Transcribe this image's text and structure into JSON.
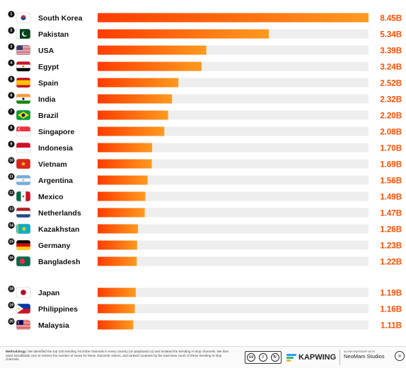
{
  "chart_data": {
    "type": "bar",
    "orientation": "horizontal",
    "categories": [
      "South Korea",
      "Pakistan",
      "USA",
      "Egypt",
      "Spain",
      "India",
      "Brazil",
      "Singapore",
      "Indonesia",
      "Vietnam",
      "Argentina",
      "Mexico",
      "Netherlands",
      "Kazakhstan",
      "Germany",
      "Bangladesh",
      "Japan",
      "Philippines",
      "Malaysia"
    ],
    "ranks": [
      "1",
      "2",
      "3",
      "4",
      "5",
      "6",
      "7",
      "8",
      "9",
      "10",
      "11",
      "12",
      "13",
      "14",
      "15",
      "16",
      "18",
      "19",
      "20"
    ],
    "values": [
      8.45,
      5.34,
      3.39,
      3.24,
      2.52,
      2.32,
      2.2,
      2.08,
      1.7,
      1.69,
      1.56,
      1.49,
      1.47,
      1.26,
      1.23,
      1.22,
      1.19,
      1.16,
      1.11
    ],
    "value_labels": [
      "8.45B",
      "5.34B",
      "3.39B",
      "3.24B",
      "2.52B",
      "2.32B",
      "2.20B",
      "2.08B",
      "1.70B",
      "1.69B",
      "1.56B",
      "1.49B",
      "1.47B",
      "1.26B",
      "1.23B",
      "1.22B",
      "1.19B",
      "1.16B",
      "1.11B"
    ],
    "flag_icons": [
      "south-korea-flag-icon",
      "pakistan-flag-icon",
      "usa-flag-icon",
      "egypt-flag-icon",
      "spain-flag-icon",
      "india-flag-icon",
      "brazil-flag-icon",
      "singapore-flag-icon",
      "indonesia-flag-icon",
      "vietnam-flag-icon",
      "argentina-flag-icon",
      "mexico-flag-icon",
      "netherlands-flag-icon",
      "kazakhstan-flag-icon",
      "germany-flag-icon",
      "bangladesh-flag-icon",
      "japan-flag-icon",
      "philippines-flag-icon",
      "malaysia-flag-icon"
    ],
    "xlim": [
      0,
      8.45
    ],
    "grid": false,
    "colors": {
      "bar_start": "#ff3d00",
      "bar_end": "#ff9a1f",
      "track": "#eeeeee",
      "label": "#111111"
    }
  },
  "footer": {
    "methodology_label": "Methodology:",
    "methodology_text": "We identified the top 100 trending YouTube channels in every country (on playboard.co) and isolated the trending AI slop channels. We then used socialblade.com to retrieve the number of views for these channels' videos, and ranked countries by the total view count of these trending AI slop channels.",
    "license_label": "BY SA",
    "brand": "KAPWING",
    "partner_label": "IN PARTNERSHIP WITH",
    "partner_name": "NeoMam Studios"
  }
}
